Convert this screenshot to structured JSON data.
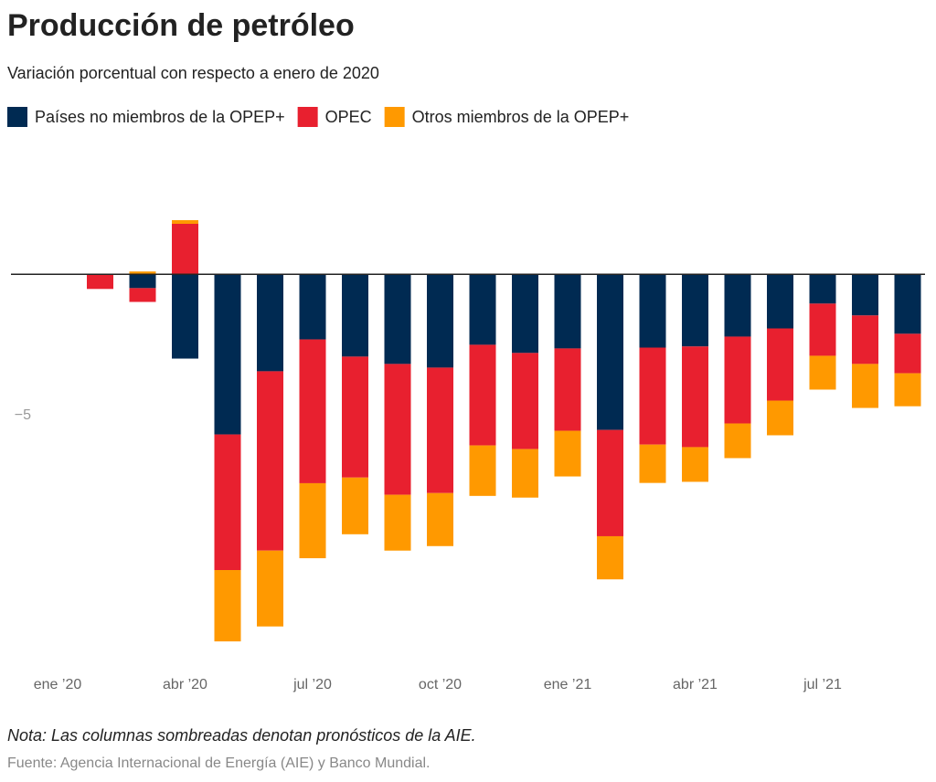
{
  "chart_data": {
    "type": "bar",
    "stacked": true,
    "title": "Producción de petróleo",
    "subtitle": "Variación porcentual con respecto a enero de 2020",
    "note": "Nota: Las columnas sombreadas denotan pronósticos de la AIE.",
    "source": "Fuente: Agencia Internacional de Energía (AIE) y Banco Mundial.",
    "categories": [
      "ene ’20",
      null,
      null,
      "abr ’20",
      null,
      null,
      "jul ’20",
      null,
      null,
      "oct ’20",
      null,
      null,
      "ene ’21",
      null,
      null,
      "abr ’21",
      null,
      null,
      "jul ’21",
      null,
      null
    ],
    "series": [
      {
        "name": "Países no miembros de la OPEP+",
        "color": "#002a52",
        "values": [
          0,
          0,
          -0.49,
          -2.99,
          -5.68,
          -3.44,
          -2.31,
          -2.92,
          -3.18,
          -3.31,
          -2.5,
          -2.79,
          -2.63,
          -5.52,
          -2.6,
          -2.56,
          -2.21,
          -1.92,
          -1.04,
          -1.46,
          -2.11
        ]
      },
      {
        "name": "OPEC",
        "color": "#e8202f",
        "values": [
          0,
          -0.52,
          -0.49,
          1.79,
          -4.81,
          -6.36,
          -5.1,
          -4.29,
          -4.64,
          -4.45,
          -3.57,
          -3.41,
          -2.92,
          -3.77,
          -3.44,
          -3.57,
          -3.08,
          -2.56,
          -1.85,
          -1.72,
          -1.4
        ]
      },
      {
        "name": "Otros miembros de la OPEP+",
        "color": "#ff9900",
        "values": [
          0,
          0,
          0.1,
          0.13,
          -2.53,
          -2.69,
          -2.66,
          -2.01,
          -1.98,
          -1.88,
          -1.79,
          -1.72,
          -1.62,
          -1.53,
          -1.36,
          -1.23,
          -1.23,
          -1.23,
          -1.2,
          -1.56,
          -1.17
        ]
      }
    ],
    "ylim": [
      -13.6,
      2.6
    ],
    "yticks": [
      {
        "value": -5,
        "label": "−5"
      }
    ],
    "legend": "top-left"
  }
}
